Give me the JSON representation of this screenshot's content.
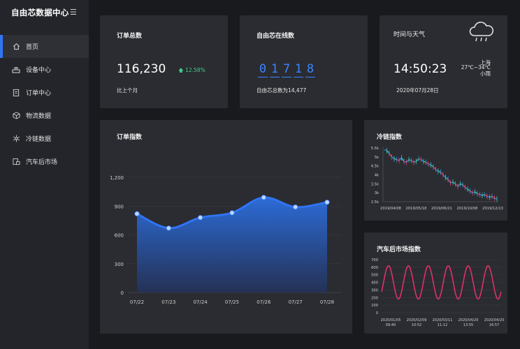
{
  "app": {
    "title": "自由芯数据中心",
    "menu_icon": "hamburger-icon"
  },
  "nav": [
    {
      "label": "首页",
      "icon": "home-icon",
      "active": true
    },
    {
      "label": "设备中心",
      "icon": "router-icon"
    },
    {
      "label": "订单中心",
      "icon": "clipboard-icon"
    },
    {
      "label": "物流数据",
      "icon": "box-icon"
    },
    {
      "label": "冷链数据",
      "icon": "snowflake-icon"
    },
    {
      "label": "汽车后市场",
      "icon": "car-icon"
    }
  ],
  "orders": {
    "title": "订单总数",
    "value": "116,230",
    "change": "12.58%",
    "caption": "比上个月"
  },
  "online": {
    "title": "自由芯在线数",
    "digits": [
      "0",
      "1",
      "7",
      "1",
      "8"
    ],
    "caption": "自由芯总数为14,477"
  },
  "weather": {
    "title": "时间与天气",
    "time": "14:50:23",
    "date": "2020年07月28日",
    "city": "上海",
    "temp": "27℃~34℃",
    "condition": "小雨",
    "icon": "cloud-rain-icon"
  },
  "colors": {
    "accent": "#2f74f5",
    "up": "#3fd08a",
    "cold_red": "#e8466a",
    "cold_blue": "#2f8ff5",
    "cold_green": "#38c9a0",
    "car_line": "#e8306a"
  },
  "order_index": {
    "title": "订单指数",
    "chart_data": {
      "type": "area",
      "categories": [
        "07/22",
        "07/23",
        "07/24",
        "07/25",
        "07/26",
        "07/27",
        "07/28"
      ],
      "values": [
        820,
        670,
        780,
        830,
        990,
        890,
        940
      ],
      "yticks": [
        "0",
        "300",
        "600",
        "900",
        "1,200"
      ],
      "ylim": [
        0,
        1200
      ]
    }
  },
  "cold_index": {
    "title": "冷链指数",
    "chart_data": {
      "type": "line",
      "xticks": [
        "2019/04/08",
        "2019/05/18",
        "2019/06/21",
        "2019/10/08",
        "2019/12/13"
      ],
      "yticks": [
        "2.5k",
        "3k",
        "3.5k",
        "4k",
        "4.5k",
        "5k",
        "5.5k"
      ],
      "ylim": [
        2500,
        5500
      ],
      "values": [
        5400,
        5350,
        5200,
        5000,
        4900,
        4850,
        4800,
        4950,
        4750,
        4700,
        4850,
        4800,
        4700,
        4750,
        4900,
        4850,
        4750,
        4700,
        4600,
        4550,
        4450,
        4300,
        4200,
        4150,
        4000,
        3850,
        3750,
        3550,
        3600,
        3500,
        3350,
        3500,
        3450,
        3300,
        3200,
        3100,
        3000,
        3050,
        2950,
        2900,
        2850,
        2900,
        2800,
        2750,
        2800,
        2700,
        2650
      ]
    }
  },
  "car_index": {
    "title": "汽车后市场指数",
    "chart_data": {
      "type": "line",
      "xticks": [
        [
          "2020/01/05",
          "09:40"
        ],
        [
          "2020/02/09",
          "10:52"
        ],
        [
          "2020/03/11",
          "11:12"
        ],
        [
          "2020/04/20",
          "13:55"
        ],
        [
          "2020/04/20",
          "16:57"
        ]
      ],
      "yticks": [
        "0",
        "100",
        "200",
        "300",
        "400",
        "500",
        "600",
        "700"
      ],
      "ylim": [
        0,
        700
      ],
      "center": 400,
      "amplitude": 220,
      "cycles": 6
    }
  }
}
